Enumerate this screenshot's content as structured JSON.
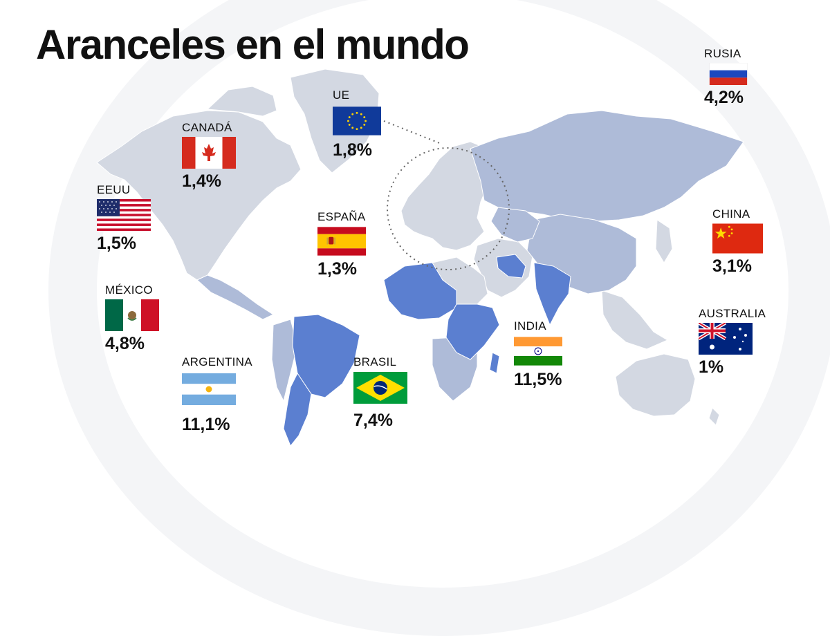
{
  "title": "Aranceles en el mundo",
  "countries": {
    "rusia": {
      "name": "RUSIA",
      "value": "4,2%",
      "flag_icon": "russia-flag"
    },
    "ue": {
      "name": "UE",
      "value": "1,8%",
      "flag_icon": "eu-flag"
    },
    "canada": {
      "name": "CANADÁ",
      "value": "1,4%",
      "flag_icon": "canada-flag"
    },
    "eeuu": {
      "name": "EEUU",
      "value": "1,5%",
      "flag_icon": "usa-flag"
    },
    "espana": {
      "name": "ESPAÑA",
      "value": "1,3%",
      "flag_icon": "spain-flag"
    },
    "china": {
      "name": "CHINA",
      "value": "3,1%",
      "flag_icon": "china-flag"
    },
    "mexico": {
      "name": "MÉXICO",
      "value": "4,8%",
      "flag_icon": "mexico-flag"
    },
    "australia": {
      "name": "AUSTRALIA",
      "value": "1%",
      "flag_icon": "australia-flag"
    },
    "india": {
      "name": "INDIA",
      "value": "11,5%",
      "flag_icon": "india-flag"
    },
    "argentina": {
      "name": "ARGENTINA",
      "value": "11,1%",
      "flag_icon": "argentina-flag"
    },
    "brasil": {
      "name": "BRASIL",
      "value": "7,4%",
      "flag_icon": "brazil-flag"
    }
  },
  "colors": {
    "land_light": "#d3d8e2",
    "land_medium": "#aebbd8",
    "land_dark": "#5b7fd0",
    "text": "#111111"
  }
}
